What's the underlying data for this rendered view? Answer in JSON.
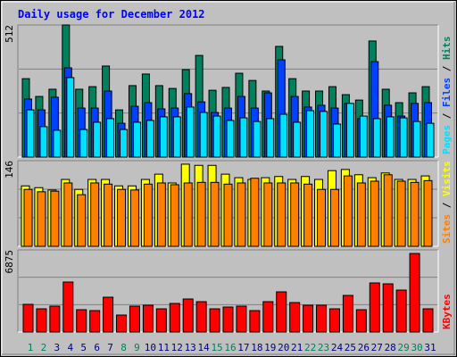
{
  "title": "Daily usage for December 2012",
  "legend_separator": " / ",
  "categories": [
    "1",
    "2",
    "3",
    "4",
    "5",
    "6",
    "7",
    "8",
    "9",
    "10",
    "11",
    "12",
    "13",
    "14",
    "15",
    "16",
    "17",
    "18",
    "19",
    "20",
    "21",
    "22",
    "23",
    "24",
    "25",
    "26",
    "27",
    "28",
    "29",
    "30",
    "31"
  ],
  "category_colors": [
    "#00805c",
    "#00805c",
    "#000080",
    "#000080",
    "#000080",
    "#000080",
    "#000080",
    "#00805c",
    "#00805c",
    "#000080",
    "#000080",
    "#000080",
    "#000080",
    "#000080",
    "#00805c",
    "#00805c",
    "#000080",
    "#000080",
    "#000080",
    "#000080",
    "#000080",
    "#00805c",
    "#00805c",
    "#000080",
    "#000080",
    "#000080",
    "#000080",
    "#000080",
    "#00805c",
    "#00805c",
    "#000080"
  ],
  "chart_data": [
    {
      "type": "bar",
      "ylim": [
        0,
        512
      ],
      "yticks": [
        512
      ],
      "series": [
        {
          "name": "Hits",
          "color": "#00805c",
          "values": [
            304,
            235,
            263,
            512,
            263,
            273,
            353,
            183,
            277,
            322,
            277,
            266,
            339,
            394,
            259,
            270,
            325,
            297,
            256,
            429,
            304,
            256,
            256,
            273,
            242,
            221,
            450,
            263,
            211,
            249,
            273
          ]
        },
        {
          "name": "Files",
          "color": "#0040ff",
          "values": [
            225,
            183,
            232,
            346,
            190,
            190,
            256,
            131,
            197,
            211,
            187,
            190,
            246,
            214,
            173,
            190,
            235,
            190,
            249,
            377,
            235,
            194,
            201,
            190,
            208,
            149,
            370,
            201,
            159,
            208,
            211
          ]
        },
        {
          "name": "Pages",
          "color": "#00e0ff",
          "values": [
            183,
            118,
            104,
            308,
            107,
            135,
            149,
            107,
            135,
            142,
            156,
            156,
            194,
            173,
            159,
            142,
            152,
            138,
            149,
            166,
            135,
            180,
            177,
            128,
            208,
            159,
            149,
            156,
            152,
            138,
            131
          ]
        }
      ]
    },
    {
      "type": "bar",
      "ylim": [
        0,
        146
      ],
      "yticks": [
        146
      ],
      "series": [
        {
          "name": "Visits",
          "color": "#ffff00",
          "values": [
            103,
            100,
            96,
            114,
            97,
            114,
            114,
            103,
            103,
            114,
            123,
            108,
            140,
            138,
            138,
            123,
            117,
            114,
            117,
            119,
            114,
            119,
            114,
            129,
            131,
            122,
            117,
            125,
            114,
            114,
            120
          ]
        },
        {
          "name": "Sites",
          "color": "#ff8000",
          "values": [
            97,
            93,
            94,
            108,
            88,
            108,
            106,
            97,
            96,
            106,
            108,
            105,
            108,
            109,
            109,
            106,
            108,
            116,
            108,
            108,
            108,
            106,
            97,
            97,
            120,
            108,
            111,
            122,
            111,
            109,
            112
          ]
        }
      ]
    },
    {
      "type": "bar",
      "ylim": [
        0,
        6875
      ],
      "yticks": [
        6875
      ],
      "series": [
        {
          "name": "KBytes",
          "color": "#ff0000",
          "values": [
            2317,
            1943,
            2167,
            4185,
            1868,
            1793,
            2914,
            1420,
            2167,
            2242,
            1943,
            2391,
            2765,
            2541,
            1943,
            2092,
            2167,
            1793,
            2541,
            3363,
            2466,
            2242,
            2242,
            1943,
            3064,
            1868,
            4110,
            4035,
            3512,
            6576,
            1943
          ]
        }
      ]
    }
  ]
}
